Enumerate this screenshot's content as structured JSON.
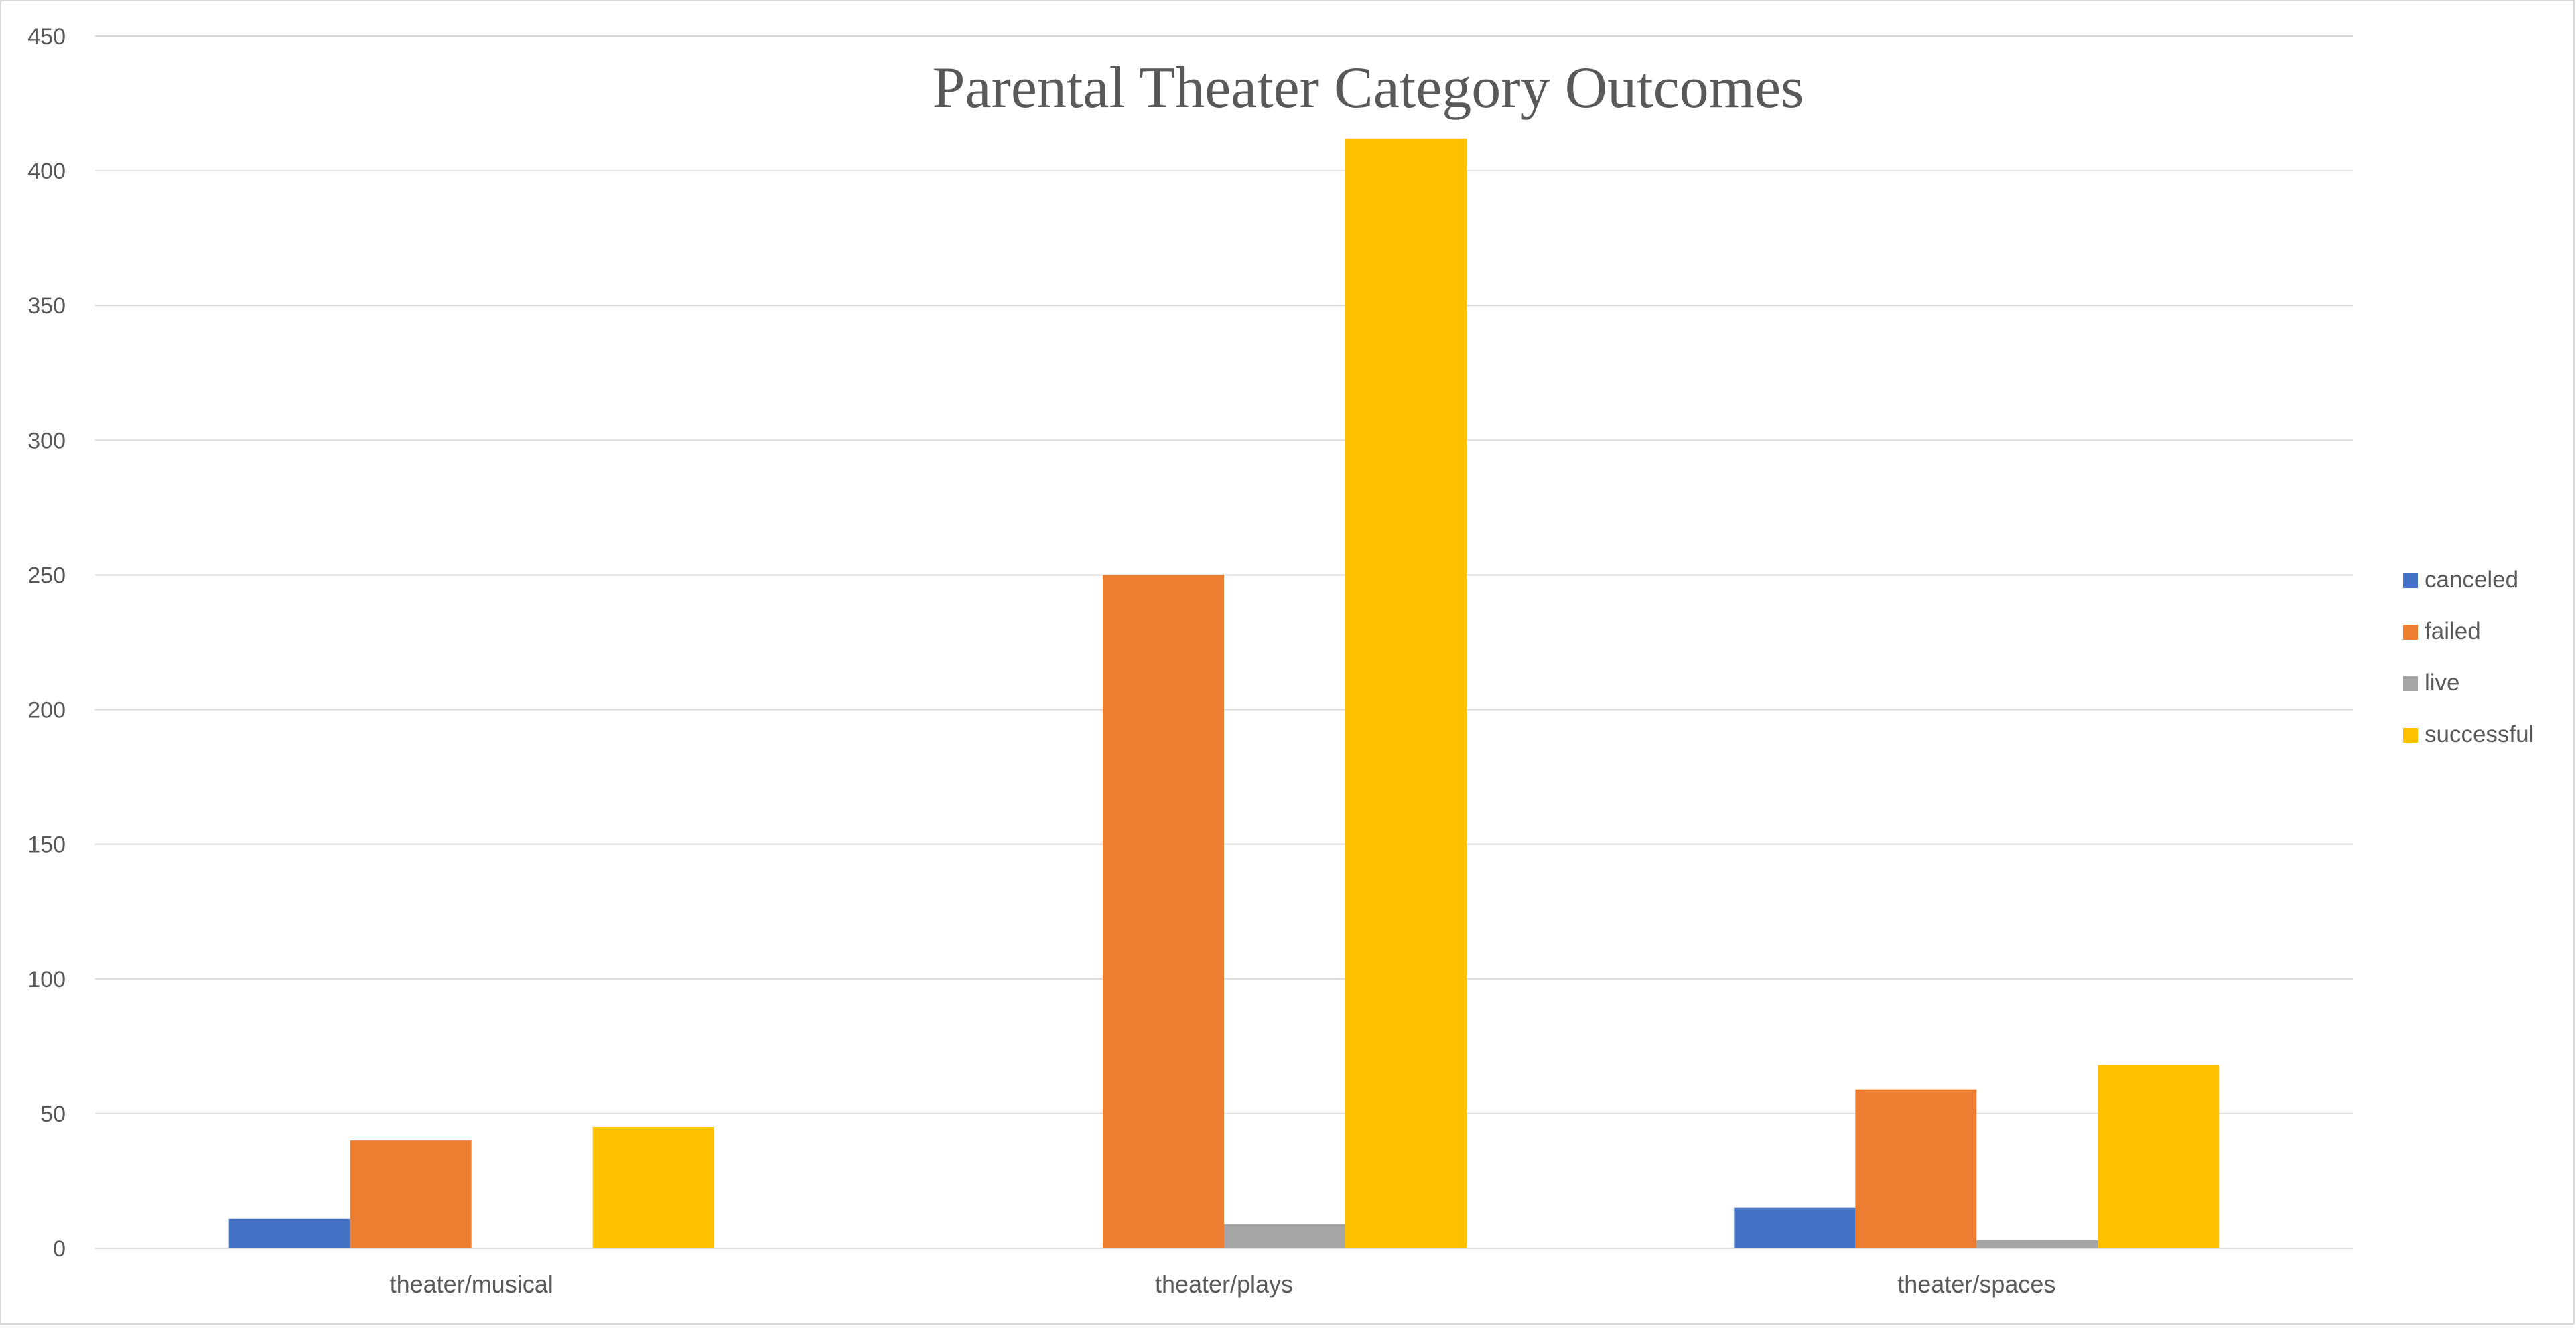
{
  "chart_data": {
    "type": "bar",
    "title": "Parental Theater Category Outcomes",
    "xlabel": "",
    "ylabel": "",
    "categories": [
      "theater/musical",
      "theater/plays",
      "theater/spaces"
    ],
    "series": [
      {
        "name": "canceled",
        "color": "#4472c4",
        "values": [
          11,
          0,
          15
        ]
      },
      {
        "name": "failed",
        "color": "#ed7d31",
        "values": [
          40,
          250,
          59
        ]
      },
      {
        "name": "live",
        "color": "#a5a5a5",
        "values": [
          0,
          9,
          3
        ]
      },
      {
        "name": "successful",
        "color": "#ffc000",
        "values": [
          45,
          412,
          68
        ]
      }
    ],
    "ylim": [
      0,
      450
    ],
    "yticks": [
      "0",
      "50",
      "100",
      "150",
      "200",
      "250",
      "300",
      "350",
      "400",
      "450"
    ],
    "grid": true,
    "legend_position": "right"
  }
}
